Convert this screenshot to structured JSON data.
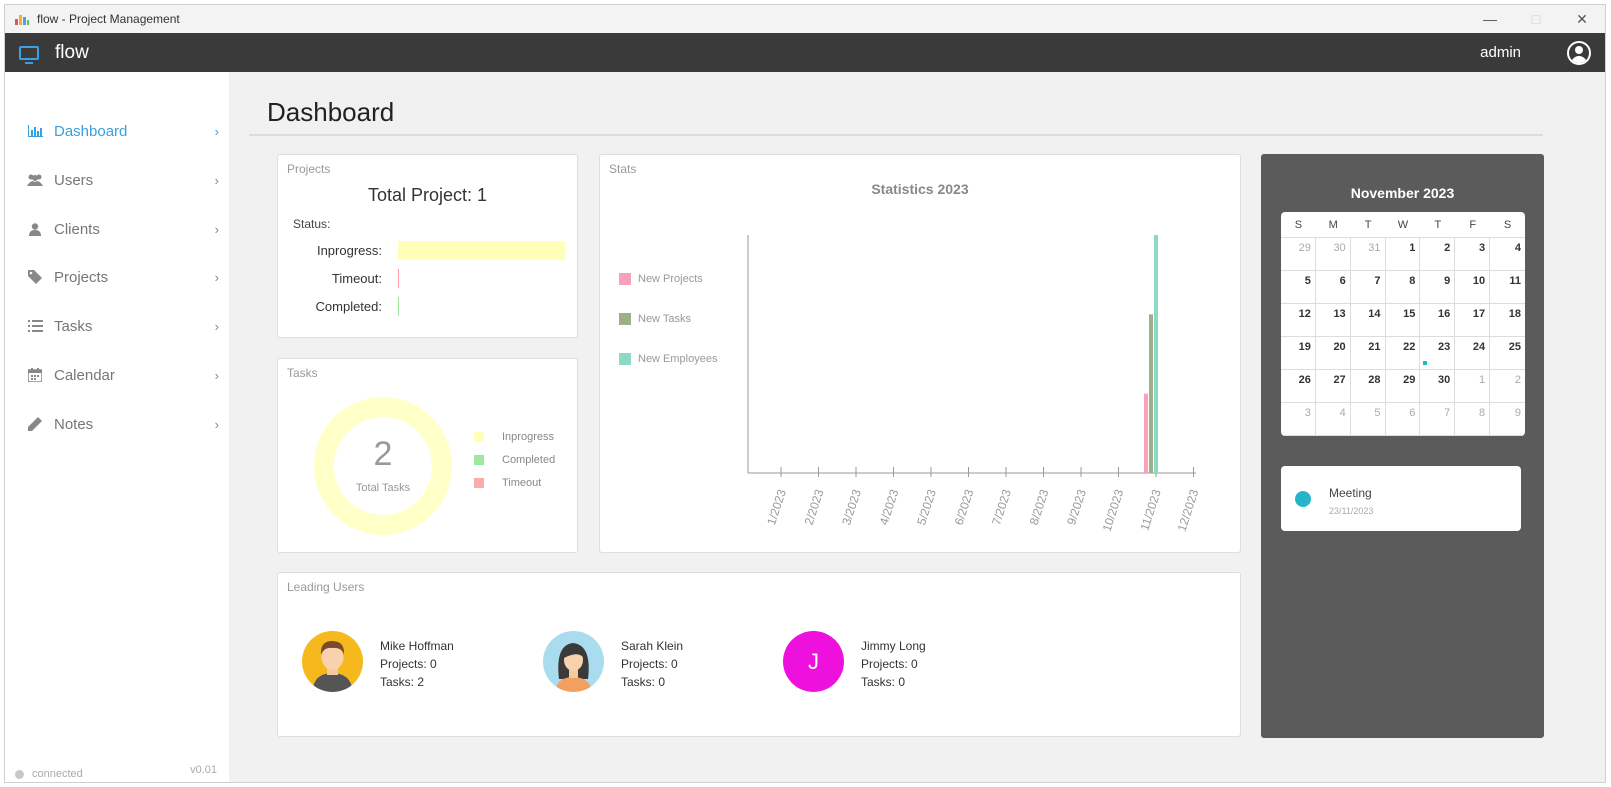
{
  "window": {
    "title": "flow - Project Management"
  },
  "appbar": {
    "app_name": "flow",
    "username": "admin"
  },
  "sidebar": {
    "items": [
      {
        "label": "Dashboard",
        "icon": "bar-chart-icon",
        "active": true
      },
      {
        "label": "Users",
        "icon": "users-icon",
        "active": false
      },
      {
        "label": "Clients",
        "icon": "user-icon",
        "active": false
      },
      {
        "label": "Projects",
        "icon": "tag-icon",
        "active": false
      },
      {
        "label": "Tasks",
        "icon": "list-icon",
        "active": false
      },
      {
        "label": "Calendar",
        "icon": "calendar-icon",
        "active": false
      },
      {
        "label": "Notes",
        "icon": "pencil-icon",
        "active": false
      }
    ],
    "status": "connected",
    "version": "v0.01"
  },
  "page": {
    "title": "Dashboard"
  },
  "projects_card": {
    "title": "Projects",
    "total_label": "Total Project: 1",
    "status_label": "Status:",
    "rows": [
      {
        "label": "Inprogress:",
        "value": 1,
        "color": "#ffffb8"
      },
      {
        "label": "Timeout:",
        "value": 0,
        "color": "#ff9aa8"
      },
      {
        "label": "Completed:",
        "value": 0,
        "color": "#9ee89e"
      }
    ]
  },
  "tasks_card": {
    "title": "Tasks",
    "count": "2",
    "count_label": "Total Tasks",
    "legend": [
      {
        "label": "Inprogress",
        "color": "#ffffb8"
      },
      {
        "label": "Completed",
        "color": "#9ee89e"
      },
      {
        "label": "Timeout",
        "color": "#ffaaaa"
      }
    ]
  },
  "stats_card": {
    "title": "Stats",
    "chart_title": "Statistics 2023"
  },
  "chart_data": {
    "type": "bar",
    "title": "Statistics 2023",
    "categories": [
      "1/2023",
      "2/2023",
      "3/2023",
      "4/2023",
      "5/2023",
      "6/2023",
      "7/2023",
      "8/2023",
      "9/2023",
      "10/2023",
      "11/2023",
      "12/2023"
    ],
    "series": [
      {
        "name": "New Projects",
        "color": "#f7a1bb",
        "values": [
          0,
          0,
          0,
          0,
          0,
          0,
          0,
          0,
          0,
          0,
          1,
          0
        ]
      },
      {
        "name": "New Tasks",
        "color": "#9db089",
        "values": [
          0,
          0,
          0,
          0,
          0,
          0,
          0,
          0,
          0,
          0,
          2,
          0
        ]
      },
      {
        "name": "New Employees",
        "color": "#8ed9c6",
        "values": [
          0,
          0,
          0,
          0,
          0,
          0,
          0,
          0,
          0,
          0,
          3,
          0
        ]
      }
    ],
    "ylim": [
      0,
      3
    ],
    "legend": "left",
    "grid": false
  },
  "leading_users": {
    "title": "Leading Users",
    "users": [
      {
        "name": "Mike Hoffman",
        "projects": "Projects: 0",
        "tasks": "Tasks: 2",
        "avatar": "male-avatar-icon"
      },
      {
        "name": "Sarah Klein",
        "projects": "Projects: 0",
        "tasks": "Tasks: 0",
        "avatar": "female-avatar-icon"
      },
      {
        "name": "Jimmy Long",
        "projects": "Projects: 0",
        "tasks": "Tasks: 0",
        "initial": "J",
        "color": "#ee11dd"
      }
    ]
  },
  "calendar": {
    "month": "November 2023",
    "weekdays": [
      "S",
      "M",
      "T",
      "W",
      "T",
      "F",
      "S"
    ],
    "weeks": [
      [
        [
          "29",
          1
        ],
        [
          "30",
          1
        ],
        [
          "31",
          1
        ],
        [
          "1",
          0
        ],
        [
          "2",
          0
        ],
        [
          "3",
          0
        ],
        [
          "4",
          0
        ]
      ],
      [
        [
          "5",
          0
        ],
        [
          "6",
          0
        ],
        [
          "7",
          0
        ],
        [
          "8",
          0
        ],
        [
          "9",
          0
        ],
        [
          "10",
          0
        ],
        [
          "11",
          0
        ]
      ],
      [
        [
          "12",
          0
        ],
        [
          "13",
          0
        ],
        [
          "14",
          0
        ],
        [
          "15",
          0
        ],
        [
          "16",
          0
        ],
        [
          "17",
          0
        ],
        [
          "18",
          0
        ]
      ],
      [
        [
          "19",
          0
        ],
        [
          "20",
          0
        ],
        [
          "21",
          0
        ],
        [
          "22",
          0
        ],
        [
          "23",
          0
        ],
        [
          "24",
          0
        ],
        [
          "25",
          0
        ]
      ],
      [
        [
          "26",
          0
        ],
        [
          "27",
          0
        ],
        [
          "28",
          0
        ],
        [
          "29",
          0
        ],
        [
          "30",
          0
        ],
        [
          "1",
          1
        ],
        [
          "2",
          1
        ]
      ],
      [
        [
          "3",
          1
        ],
        [
          "4",
          1
        ],
        [
          "5",
          1
        ],
        [
          "6",
          1
        ],
        [
          "7",
          1
        ],
        [
          "8",
          1
        ],
        [
          "9",
          1
        ]
      ]
    ],
    "marked_day": "23",
    "event": {
      "title": "Meeting",
      "date": "23/11/2023",
      "color": "#26b5c8"
    }
  }
}
